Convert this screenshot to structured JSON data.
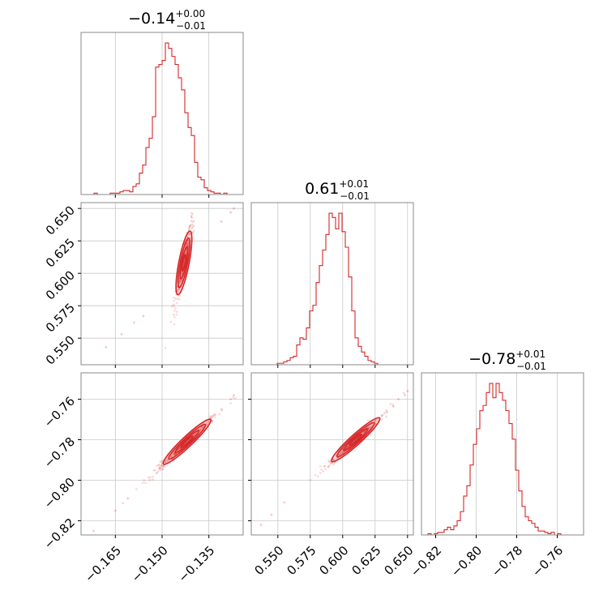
{
  "chart_data": {
    "type": "corner",
    "color": "#d62728",
    "grid": true,
    "params": [
      {
        "title": {
          "value": "−0.14",
          "plus": "+0.00",
          "minus": "−0.01"
        },
        "range": [
          -0.176,
          -0.124
        ],
        "ticks": [
          -0.165,
          -0.15,
          -0.135
        ],
        "ticklabels": [
          "−0.165",
          "−0.150",
          "−0.135"
        ],
        "hist_bin_edges_start": -0.176,
        "hist_bin_width": 0.00104,
        "hist_counts": [
          0,
          0,
          0,
          0,
          1,
          0,
          0,
          0,
          0,
          1,
          1,
          1,
          2,
          3,
          3,
          2,
          6,
          8,
          16,
          22,
          35,
          42,
          58,
          95,
          97,
          100,
          113,
          109,
          103,
          97,
          87,
          78,
          61,
          50,
          44,
          24,
          13,
          11,
          5,
          3,
          2,
          1,
          1,
          0,
          1,
          0,
          0,
          0,
          0,
          0
        ]
      },
      {
        "title": {
          "value": "0.61",
          "plus": "+0.01",
          "minus": "−0.01"
        },
        "range": [
          0.5295,
          0.6545
        ],
        "ticks": [
          0.55,
          0.575,
          0.6,
          0.625,
          0.65
        ],
        "ticklabels": [
          "0.550",
          "0.575",
          "0.600",
          "0.625",
          "0.650"
        ],
        "hist_bin_edges_start": 0.5295,
        "hist_bin_width": 0.0025,
        "hist_counts": [
          0,
          0,
          0,
          0,
          0,
          0,
          0,
          0,
          1,
          1,
          2,
          3,
          5,
          6,
          14,
          19,
          18,
          26,
          38,
          42,
          58,
          70,
          81,
          92,
          107,
          104,
          96,
          107,
          94,
          83,
          62,
          38,
          19,
          13,
          9,
          6,
          3,
          2,
          1,
          0
        ]
      },
      {
        "title": {
          "value": "−0.78",
          "plus": "+0.01",
          "minus": "−0.01"
        },
        "range": [
          -0.827,
          -0.747
        ],
        "ticks": [
          -0.82,
          -0.8,
          -0.78,
          -0.76
        ],
        "ticklabels": [
          "−0.82",
          "−0.80",
          "−0.78",
          "−0.76"
        ],
        "hist_bin_edges_start": -0.827,
        "hist_bin_width": 0.0016,
        "hist_counts": [
          0,
          0,
          1,
          0,
          1,
          2,
          2,
          4,
          6,
          4,
          7,
          11,
          18,
          30,
          38,
          54,
          70,
          82,
          96,
          100,
          110,
          117,
          106,
          117,
          110,
          104,
          96,
          86,
          74,
          50,
          34,
          22,
          14,
          11,
          9,
          6,
          3,
          3,
          2,
          1,
          2,
          0,
          1,
          0,
          0,
          0,
          0,
          0,
          0,
          0
        ]
      }
    ],
    "pairs": [
      {
        "x": 0,
        "y": 1,
        "slope": 12.5,
        "mean": [
          -0.143,
          0.608
        ],
        "outliers": [
          [
            -0.168,
            0.543
          ],
          [
            -0.163,
            0.553
          ],
          [
            -0.159,
            0.562
          ],
          [
            -0.156,
            0.567
          ],
          [
            -0.128,
            0.647
          ],
          [
            -0.127,
            0.65
          ],
          [
            -0.131,
            0.64
          ]
        ]
      },
      {
        "x": 0,
        "y": 2,
        "slope": 1.45,
        "mean": [
          -0.142,
          -0.781
        ],
        "outliers": [
          [
            -0.172,
            -0.825
          ],
          [
            -0.165,
            -0.815
          ],
          [
            -0.161,
            -0.809
          ],
          [
            -0.128,
            -0.76
          ],
          [
            -0.127,
            -0.758
          ],
          [
            -0.131,
            -0.765
          ]
        ]
      },
      {
        "x": 1,
        "y": 2,
        "slope": 0.58,
        "mean": [
          0.61,
          -0.78
        ],
        "outliers": [
          [
            0.537,
            -0.822
          ],
          [
            0.545,
            -0.817
          ],
          [
            0.555,
            -0.811
          ],
          [
            0.648,
            -0.758
          ],
          [
            0.65,
            -0.756
          ],
          [
            0.643,
            -0.76
          ]
        ]
      }
    ]
  }
}
